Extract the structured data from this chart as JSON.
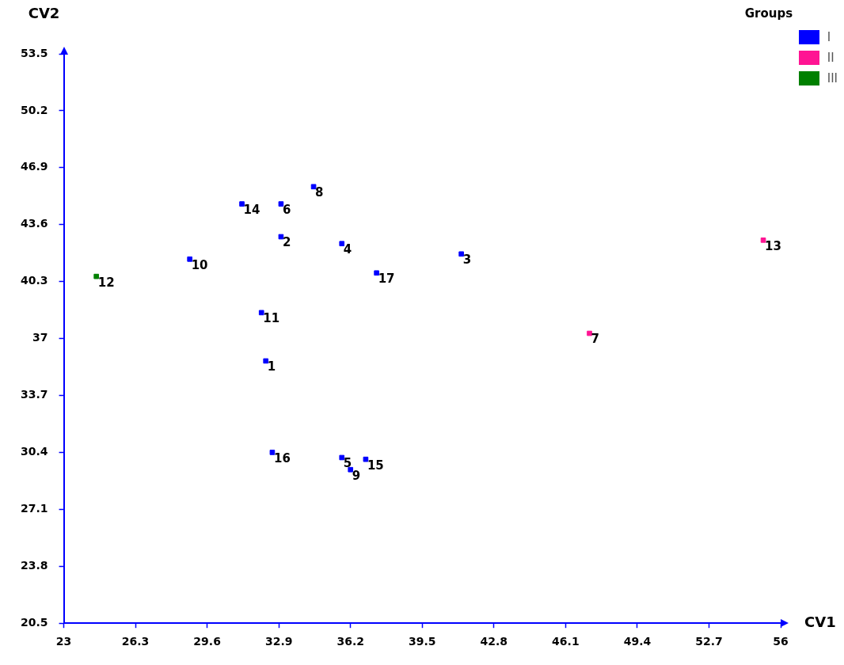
{
  "chart_data": {
    "type": "scatter",
    "xlabel": "CV1",
    "ylabel": "CV2",
    "legend_title": "Groups",
    "legend": "top right",
    "marker": "square",
    "grid": false,
    "xlim": [
      23,
      56
    ],
    "xticks": [
      23,
      26.3,
      29.6,
      32.9,
      36.2,
      39.5,
      42.8,
      46.1,
      49.4,
      52.7,
      56
    ],
    "ylim": [
      20.5,
      53.5
    ],
    "yticks": [
      20.5,
      23.8,
      27.1,
      30.4,
      33.7,
      37,
      40.3,
      43.6,
      46.9,
      50.2,
      53.5
    ],
    "series": [
      {
        "name": "I",
        "color": "#0000ff",
        "x": [
          32.3,
          33.0,
          41.3,
          35.8,
          35.8,
          33.0,
          34.5,
          36.2,
          28.8,
          32.1,
          31.2,
          36.9,
          32.6,
          37.4
        ],
        "values": [
          35.7,
          42.9,
          41.9,
          42.5,
          30.1,
          44.8,
          45.8,
          29.4,
          41.6,
          38.5,
          44.8,
          30.0,
          30.4,
          40.8
        ]
      },
      {
        "name": "II",
        "color": "#ff1493",
        "x": [
          47.2,
          55.2
        ],
        "values": [
          37.3,
          42.7
        ]
      },
      {
        "name": "III",
        "color": "#008000",
        "x": [
          24.5
        ],
        "values": [
          40.6
        ]
      }
    ],
    "annotations": [
      {
        "text": "1",
        "x": 32.3,
        "y": 35.7
      },
      {
        "text": "2",
        "x": 33.0,
        "y": 42.9
      },
      {
        "text": "3",
        "x": 41.3,
        "y": 41.9
      },
      {
        "text": "4",
        "x": 35.8,
        "y": 42.5
      },
      {
        "text": "5",
        "x": 35.8,
        "y": 30.1
      },
      {
        "text": "6",
        "x": 33.0,
        "y": 44.8
      },
      {
        "text": "7",
        "x": 47.2,
        "y": 37.3
      },
      {
        "text": "8",
        "x": 34.5,
        "y": 45.8
      },
      {
        "text": "9",
        "x": 36.2,
        "y": 29.4
      },
      {
        "text": "10",
        "x": 28.8,
        "y": 41.6
      },
      {
        "text": "11",
        "x": 32.1,
        "y": 38.5
      },
      {
        "text": "12",
        "x": 24.5,
        "y": 40.6
      },
      {
        "text": "13",
        "x": 55.2,
        "y": 42.7
      },
      {
        "text": "14",
        "x": 31.2,
        "y": 44.8
      },
      {
        "text": "15",
        "x": 36.9,
        "y": 30.0
      },
      {
        "text": "16",
        "x": 32.6,
        "y": 30.4
      },
      {
        "text": "17",
        "x": 37.4,
        "y": 40.8
      }
    ]
  }
}
